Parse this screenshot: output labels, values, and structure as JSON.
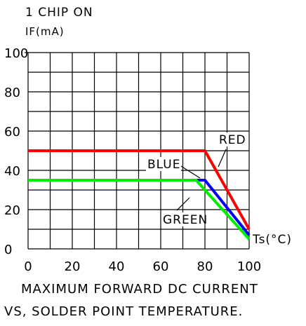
{
  "header": {
    "line1": "1 CHIP ON",
    "line2": "IF(mA)"
  },
  "caption": {
    "line1": "MAXIMUM FORWARD DC CURRENT",
    "line2": "VS, SOLDER POINT TEMPERATURE."
  },
  "chart_data": {
    "type": "line",
    "ylabel": "IF(mA)",
    "xlabel": "Ts(°C)",
    "xlim": [
      0,
      100
    ],
    "ylim": [
      0,
      100
    ],
    "x_ticks": [
      0,
      20,
      40,
      60,
      80,
      100
    ],
    "y_ticks": [
      0,
      20,
      40,
      60,
      80,
      100
    ],
    "grid": true,
    "series": [
      {
        "name": "RED",
        "color": "#ff0000",
        "points": [
          [
            0,
            50
          ],
          [
            80,
            50
          ],
          [
            100,
            10
          ]
        ]
      },
      {
        "name": "BLUE",
        "color": "#0000ff",
        "points": [
          [
            0,
            35
          ],
          [
            80,
            35
          ],
          [
            100,
            7
          ]
        ]
      },
      {
        "name": "GREEN",
        "color": "#00ee00",
        "points": [
          [
            0,
            35
          ],
          [
            76,
            35
          ],
          [
            100,
            5
          ]
        ]
      }
    ]
  }
}
